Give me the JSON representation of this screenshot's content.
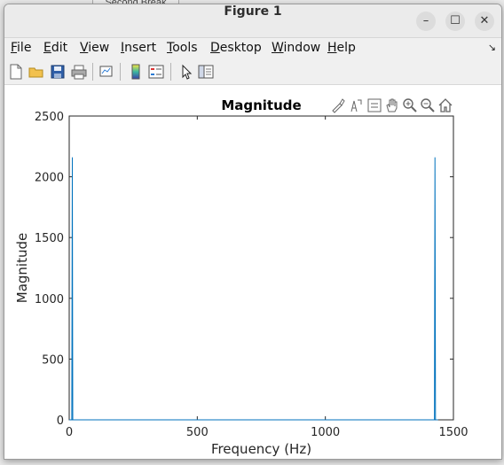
{
  "window": {
    "title": "Figure 1"
  },
  "window_controls": {
    "minimize": "–",
    "maximize": "☐",
    "close": "✕"
  },
  "menubar": {
    "items": [
      {
        "label": "File",
        "u": "F",
        "rest": "ile"
      },
      {
        "label": "Edit",
        "u": "E",
        "rest": "dit"
      },
      {
        "label": "View",
        "u": "V",
        "rest": "iew"
      },
      {
        "label": "Insert",
        "u": "I",
        "rest": "nsert"
      },
      {
        "label": "Tools",
        "u": "T",
        "rest": "ools"
      },
      {
        "label": "Desktop",
        "u": "D",
        "rest": "esktop"
      },
      {
        "label": "Window",
        "u": "W",
        "rest": "indow"
      },
      {
        "label": "Help",
        "u": "H",
        "rest": "elp"
      }
    ]
  },
  "toolbar": {
    "icons": [
      "new-figure-icon",
      "open-file-icon",
      "save-icon",
      "print-icon",
      "link-plot-icon",
      "colorbar-icon",
      "legend-icon",
      "edit-plot-icon",
      "property-inspector-icon"
    ]
  },
  "axes_toolbar": {
    "icons": [
      "brush-icon",
      "data-tips-icon",
      "restore-view-icon",
      "pan-icon",
      "zoom-in-icon",
      "zoom-out-icon",
      "home-icon"
    ]
  },
  "background": {
    "tab_label": "Second Break"
  },
  "chart_data": {
    "type": "line",
    "title": "Magnitude",
    "xlabel": "Frequency (Hz)",
    "ylabel": "Magnitude",
    "xlim": [
      0,
      1500
    ],
    "ylim": [
      0,
      2500
    ],
    "xticks": [
      0,
      500,
      1000,
      1500
    ],
    "yticks": [
      0,
      500,
      1000,
      1500,
      2000,
      2500
    ],
    "grid": false,
    "series": [
      {
        "color": "#0072bd",
        "x": [
          0,
          10,
          12,
          14,
          20,
          1000,
          1420,
          1426,
          1428,
          1430,
          1440
        ],
        "y": [
          0,
          0,
          2160,
          0,
          0,
          0,
          0,
          0,
          2160,
          0,
          0
        ]
      }
    ]
  },
  "colors": {
    "line": "#0072bd",
    "axis": "#262626"
  }
}
